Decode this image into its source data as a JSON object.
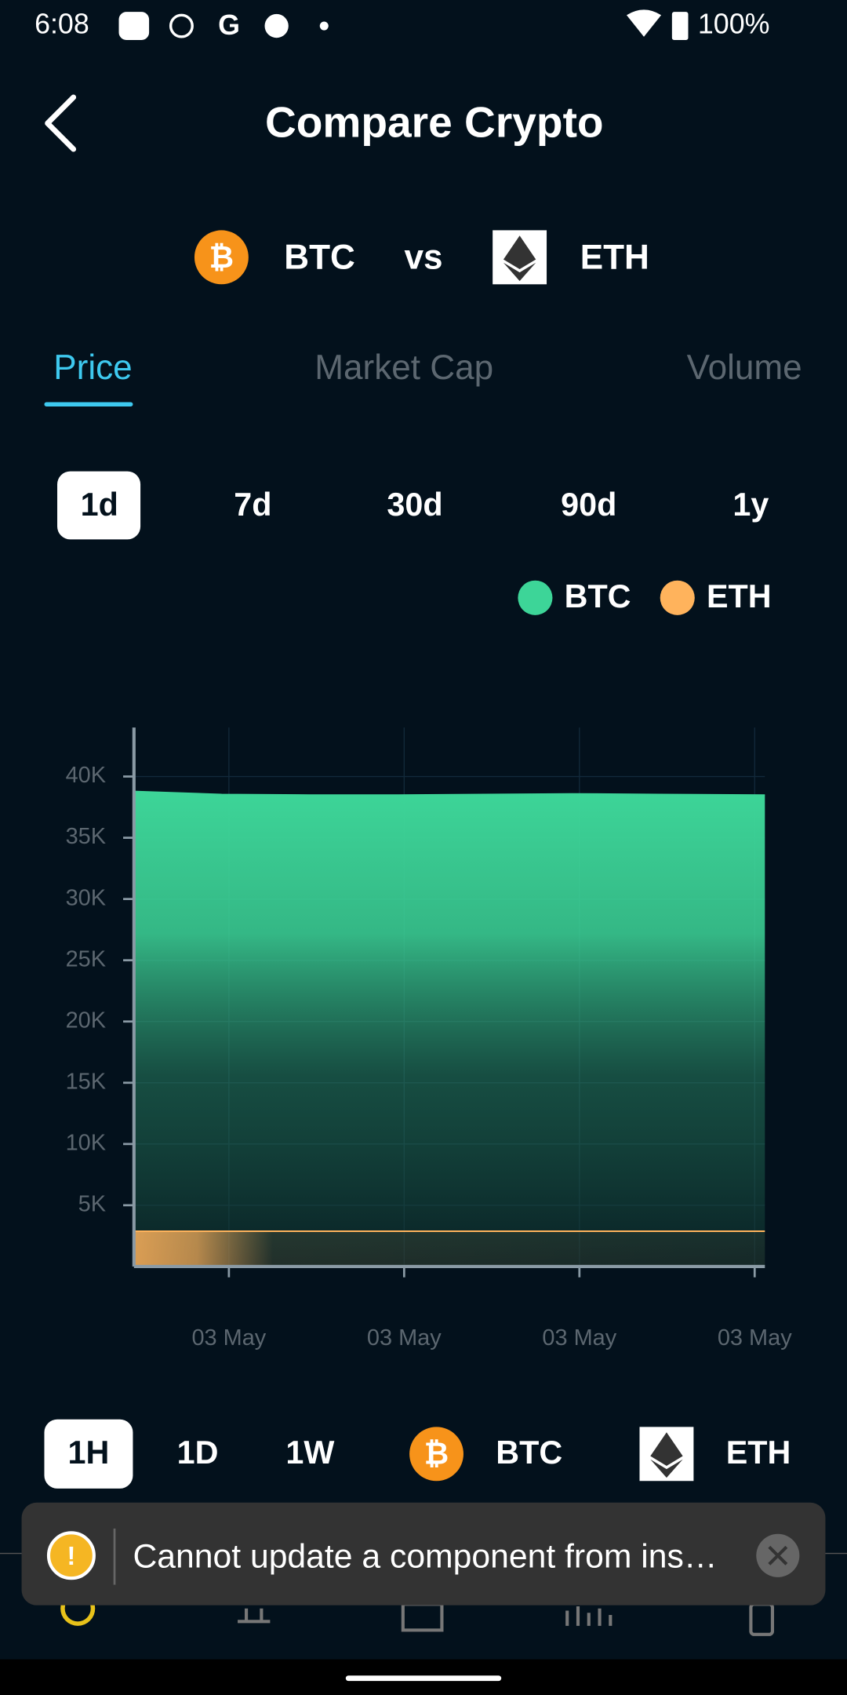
{
  "status_bar": {
    "time": "6:08",
    "battery": "100%"
  },
  "header": {
    "title": "Compare Crypto"
  },
  "pair": {
    "left": "BTC",
    "vs": "vs",
    "right": "ETH"
  },
  "tabs": [
    "Price",
    "Market Cap",
    "Volume"
  ],
  "ranges": [
    "1d",
    "7d",
    "30d",
    "90d",
    "1y"
  ],
  "chart_data": {
    "type": "area",
    "x": [
      0,
      3,
      6,
      9,
      12,
      15,
      18,
      21.6
    ],
    "xlim": [
      0,
      21.6
    ],
    "xticks": [
      {
        "value": 3.25,
        "label": "03 May"
      },
      {
        "value": 9.25,
        "label": "03 May"
      },
      {
        "value": 15.25,
        "label": "03 May"
      },
      {
        "value": 21.25,
        "label": "03 May"
      }
    ],
    "ylim": [
      0,
      44000
    ],
    "yticks": [
      {
        "value": 5000,
        "label": "5K"
      },
      {
        "value": 10000,
        "label": "10K"
      },
      {
        "value": 15000,
        "label": "15K"
      },
      {
        "value": 20000,
        "label": "20K"
      },
      {
        "value": 25000,
        "label": "25K"
      },
      {
        "value": 30000,
        "label": "30K"
      },
      {
        "value": 35000,
        "label": "35K"
      },
      {
        "value": 40000,
        "label": "40K"
      }
    ],
    "grid": true,
    "legend": "top-right",
    "series": [
      {
        "name": "BTC",
        "color": "#3dd598",
        "values": [
          38800,
          38550,
          38500,
          38500,
          38550,
          38600,
          38550,
          38500
        ]
      },
      {
        "name": "ETH",
        "color": "#ffb35c",
        "values": [
          2880,
          2880,
          2880,
          2880,
          2880,
          2880,
          2880,
          2880
        ]
      }
    ]
  },
  "bottom_controls": {
    "intervals": [
      "1H",
      "1D",
      "1W"
    ],
    "coins": [
      "BTC",
      "ETH"
    ]
  },
  "toast": {
    "message": "Cannot update a component from ins…"
  }
}
